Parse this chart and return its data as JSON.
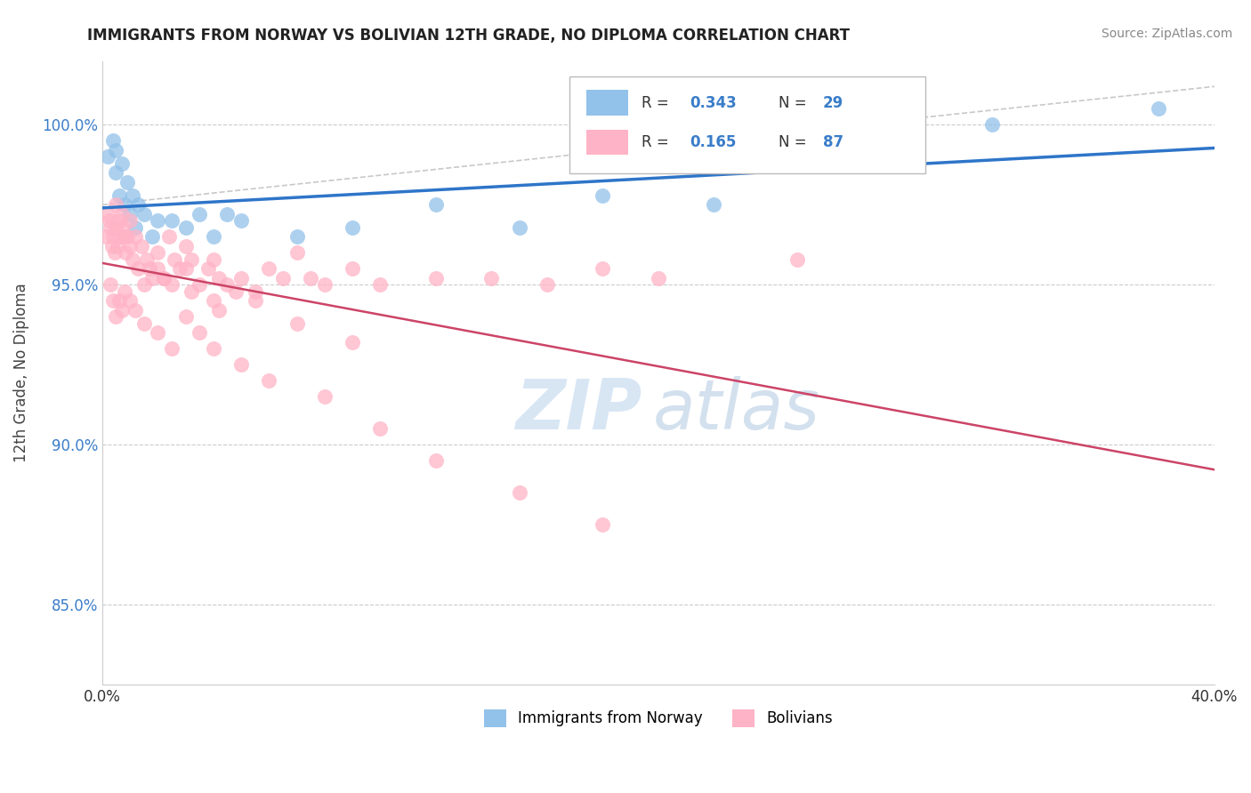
{
  "title": "IMMIGRANTS FROM NORWAY VS BOLIVIAN 12TH GRADE, NO DIPLOMA CORRELATION CHART",
  "source": "Source: ZipAtlas.com",
  "ylabel": "12th Grade, No Diploma",
  "xlim": [
    0.0,
    40.0
  ],
  "ylim": [
    82.5,
    102.0
  ],
  "R_norway": 0.343,
  "N_norway": 29,
  "R_bolivia": 0.165,
  "N_bolivia": 87,
  "norway_scatter_color": "#92C1E9",
  "bolivia_scatter_color": "#FFB3C6",
  "regression_norway_color": "#2E75C9",
  "regression_bolivia_color": "#CC4466",
  "background_color": "#FFFFFF",
  "grid_color": "#CCCCCC",
  "norway_x": [
    0.2,
    0.4,
    0.5,
    0.5,
    0.6,
    0.7,
    0.8,
    0.9,
    1.0,
    1.1,
    1.2,
    1.3,
    1.5,
    1.8,
    2.0,
    2.5,
    3.0,
    3.5,
    4.0,
    4.5,
    5.0,
    7.0,
    9.0,
    12.0,
    15.0,
    18.0,
    22.0,
    32.0,
    38.0
  ],
  "norway_y": [
    99.0,
    99.5,
    99.2,
    98.5,
    97.8,
    98.8,
    97.5,
    98.2,
    97.2,
    97.8,
    96.8,
    97.5,
    97.2,
    96.5,
    97.0,
    97.0,
    96.8,
    97.2,
    96.5,
    97.2,
    97.0,
    96.5,
    96.8,
    97.5,
    96.8,
    97.8,
    97.5,
    100.0,
    100.5
  ],
  "bolivia_x": [
    0.15,
    0.2,
    0.25,
    0.3,
    0.35,
    0.4,
    0.45,
    0.5,
    0.5,
    0.55,
    0.6,
    0.65,
    0.7,
    0.75,
    0.8,
    0.85,
    0.9,
    1.0,
    1.0,
    1.1,
    1.2,
    1.3,
    1.4,
    1.5,
    1.6,
    1.7,
    1.8,
    2.0,
    2.0,
    2.2,
    2.4,
    2.5,
    2.6,
    2.8,
    3.0,
    3.0,
    3.2,
    3.5,
    3.8,
    4.0,
    4.0,
    4.2,
    4.5,
    4.8,
    5.0,
    5.5,
    6.0,
    6.5,
    7.0,
    7.5,
    8.0,
    9.0,
    10.0,
    12.0,
    14.0,
    16.0,
    18.0,
    20.0,
    25.0,
    0.3,
    0.4,
    0.5,
    0.6,
    0.7,
    0.8,
    1.0,
    1.2,
    1.5,
    2.0,
    2.5,
    3.0,
    3.5,
    4.0,
    5.0,
    6.0,
    8.0,
    10.0,
    12.0,
    15.0,
    18.0,
    2.2,
    3.2,
    4.2,
    5.5,
    7.0,
    9.0
  ],
  "bolivia_y": [
    96.5,
    97.2,
    97.0,
    96.8,
    96.2,
    96.5,
    96.0,
    97.5,
    96.8,
    96.2,
    97.0,
    96.5,
    97.2,
    96.8,
    96.5,
    96.0,
    96.5,
    96.2,
    97.0,
    95.8,
    96.5,
    95.5,
    96.2,
    95.0,
    95.8,
    95.5,
    95.2,
    95.5,
    96.0,
    95.2,
    96.5,
    95.0,
    95.8,
    95.5,
    96.2,
    95.5,
    95.8,
    95.0,
    95.5,
    95.8,
    94.5,
    95.2,
    95.0,
    94.8,
    95.2,
    94.8,
    95.5,
    95.2,
    96.0,
    95.2,
    95.0,
    95.5,
    95.0,
    95.2,
    95.2,
    95.0,
    95.5,
    95.2,
    95.8,
    95.0,
    94.5,
    94.0,
    94.5,
    94.2,
    94.8,
    94.5,
    94.2,
    93.8,
    93.5,
    93.0,
    94.0,
    93.5,
    93.0,
    92.5,
    92.0,
    91.5,
    90.5,
    89.5,
    88.5,
    87.5,
    95.2,
    94.8,
    94.2,
    94.5,
    93.8,
    93.2
  ]
}
